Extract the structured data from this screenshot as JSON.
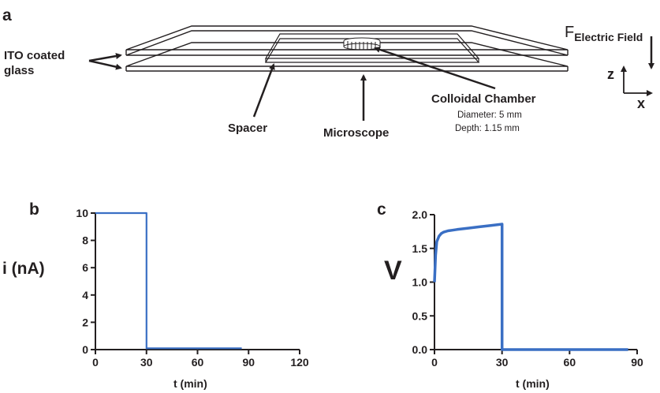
{
  "panel_a": {
    "letter": "a",
    "ito_label_line1": "ITO coated",
    "ito_label_line2": "glass",
    "chamber_label": "Colloidal Chamber",
    "chamber_diameter": "Diameter: 5 mm",
    "chamber_depth": "Depth: 1.15 mm",
    "spacer_label": "Spacer",
    "microscope_label": "Microscope",
    "force_label": "F",
    "force_subscript": "Electric Field",
    "axis_z": "z",
    "axis_x": "x"
  },
  "chart_data": [
    {
      "type": "line",
      "panel": "b",
      "ylabel": "i (nA)",
      "xlabel": "t (min)",
      "xlim": [
        0,
        120
      ],
      "ylim": [
        0,
        10
      ],
      "xticks": [
        0,
        30,
        60,
        90,
        120
      ],
      "yticks": [
        0,
        2,
        4,
        6,
        8,
        10
      ],
      "series": [
        {
          "x": [
            0,
            30,
            30,
            86
          ],
          "y": [
            10,
            10,
            0.1,
            0.1
          ]
        }
      ],
      "color": "#3a6fc4"
    },
    {
      "type": "line",
      "panel": "c",
      "ylabel": "V",
      "xlabel": "t (min)",
      "xlim": [
        0,
        90
      ],
      "ylim": [
        0,
        2.0
      ],
      "xticks": [
        0,
        30,
        60,
        90
      ],
      "yticks": [
        "0.0",
        "0.5",
        "1.0",
        "1.5",
        "2.0"
      ],
      "series": [
        {
          "x": [
            0,
            0.5,
            1,
            2,
            3,
            4,
            6,
            8,
            10,
            15,
            20,
            25,
            30,
            30,
            86
          ],
          "y": [
            1.0,
            1.4,
            1.6,
            1.68,
            1.72,
            1.74,
            1.76,
            1.77,
            1.78,
            1.8,
            1.82,
            1.84,
            1.86,
            0.0,
            0.0
          ]
        }
      ],
      "color": "#3a6fc4"
    }
  ]
}
